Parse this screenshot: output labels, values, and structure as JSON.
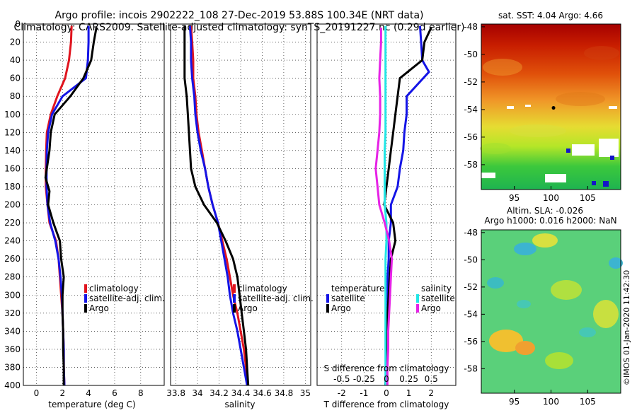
{
  "header": {
    "line1": "Argo profile: incois 2902222_108 27-Dec-2019 53.88S 100.34E (NRT data)",
    "line2": "Climatology: CARS2009. Satellite-adjusted climatology: synTS_20191227.nc (0.29d earlier)"
  },
  "colors": {
    "climatology": "#e0141e",
    "satellite": "#1414e6",
    "argo": "#000000",
    "salinity_satellite": "#22e6e6",
    "salinity_argo": "#e622e6"
  },
  "chart_data": [
    {
      "type": "line",
      "title": "",
      "xlabel": "temperature (deg C)",
      "ylabel": "",
      "xlim": [
        -1,
        9.8
      ],
      "ylim": [
        400,
        0
      ],
      "xticks": [
        "0",
        "2",
        "4",
        "6",
        "8"
      ],
      "yticks": [
        "0",
        "20",
        "40",
        "60",
        "80",
        "100",
        "120",
        "140",
        "160",
        "180",
        "200",
        "220",
        "240",
        "260",
        "280",
        "300",
        "320",
        "340",
        "360",
        "380",
        "400"
      ],
      "legend": [
        "climatology",
        "satellite-adj. clim.",
        "Argo"
      ],
      "series": [
        {
          "name": "climatology",
          "color": "#e0141e",
          "x": [
            2.7,
            2.65,
            2.5,
            2.2,
            1.6,
            1.1,
            0.8,
            0.75,
            0.72,
            0.72,
            0.85,
            1.0,
            1.5,
            1.7,
            1.8,
            1.9,
            2.0,
            2.05,
            2.1,
            2.1,
            2.15
          ],
          "y": [
            2,
            20,
            40,
            60,
            80,
            100,
            120,
            140,
            160,
            180,
            200,
            220,
            240,
            260,
            280,
            300,
            320,
            340,
            360,
            380,
            400
          ]
        },
        {
          "name": "satellite-adj. clim.",
          "color": "#1414e6",
          "x": [
            4.0,
            4.0,
            3.95,
            3.8,
            2.0,
            1.2,
            0.9,
            0.8,
            0.78,
            0.78,
            0.85,
            1.05,
            1.45,
            1.7,
            1.85,
            1.95,
            2.0,
            2.05,
            2.1,
            2.1,
            2.15
          ],
          "y": [
            2,
            20,
            40,
            60,
            80,
            100,
            120,
            140,
            160,
            180,
            200,
            220,
            240,
            260,
            280,
            300,
            320,
            340,
            360,
            380,
            400
          ]
        },
        {
          "name": "Argo",
          "color": "#000000",
          "x": [
            4.6,
            4.4,
            4.2,
            3.6,
            2.6,
            1.4,
            1.1,
            1.0,
            0.7,
            1.0,
            0.9,
            1.3,
            1.8,
            1.9,
            2.1,
            2.0,
            2.0,
            2.05,
            2.05,
            2.1,
            2.1
          ],
          "y": [
            4,
            20,
            40,
            60,
            80,
            100,
            120,
            140,
            170,
            185,
            200,
            220,
            240,
            260,
            280,
            300,
            320,
            340,
            360,
            380,
            400
          ]
        }
      ]
    },
    {
      "type": "line",
      "title": "",
      "xlabel": "salinity",
      "ylabel": "",
      "xlim": [
        33.75,
        35.05
      ],
      "ylim": [
        400,
        0
      ],
      "xticks": [
        "33.8",
        "34",
        "34.2",
        "34.4",
        "34.6",
        "34.8",
        "35"
      ],
      "legend": [
        "climatology",
        "satellite-adj. clim.",
        "Argo"
      ],
      "series": [
        {
          "name": "climatology",
          "color": "#e0141e",
          "x": [
            33.94,
            33.95,
            33.96,
            33.96,
            33.98,
            33.99,
            34.01,
            34.04,
            34.07,
            34.1,
            34.14,
            34.19,
            34.23,
            34.27,
            34.3,
            34.33,
            34.37,
            34.4,
            34.43,
            34.45,
            34.47
          ],
          "y": [
            2,
            20,
            40,
            60,
            80,
            100,
            120,
            140,
            160,
            180,
            200,
            220,
            240,
            260,
            280,
            300,
            320,
            340,
            360,
            380,
            400
          ]
        },
        {
          "name": "satellite-adj. clim.",
          "color": "#1414e6",
          "x": [
            33.93,
            33.94,
            33.94,
            33.95,
            33.97,
            33.98,
            34.0,
            34.03,
            34.07,
            34.1,
            34.14,
            34.19,
            34.22,
            34.25,
            34.28,
            34.3,
            34.33,
            34.37,
            34.4,
            34.43,
            34.46
          ],
          "y": [
            2,
            20,
            40,
            60,
            80,
            100,
            120,
            140,
            160,
            180,
            200,
            220,
            240,
            260,
            280,
            300,
            320,
            340,
            360,
            380,
            400
          ]
        },
        {
          "name": "Argo",
          "color": "#000000",
          "x": [
            33.88,
            33.88,
            33.88,
            33.88,
            33.9,
            33.91,
            33.92,
            33.93,
            33.94,
            33.98,
            34.06,
            34.18,
            34.26,
            34.33,
            34.37,
            34.39,
            34.41,
            34.43,
            34.45,
            34.46,
            34.47
          ],
          "y": [
            2,
            20,
            40,
            60,
            80,
            100,
            120,
            140,
            160,
            180,
            200,
            220,
            240,
            260,
            280,
            300,
            320,
            340,
            360,
            380,
            400
          ]
        }
      ]
    },
    {
      "type": "line",
      "title": "",
      "xlabel": "T difference from climatology",
      "ylabel": "",
      "xlim": [
        -3.1,
        3.1
      ],
      "ylim": [
        400,
        0
      ],
      "xticks": [
        "-2",
        "-1",
        "0",
        "1",
        "2"
      ],
      "secondary_axis": {
        "label": "S difference from climatology",
        "xlim": [
          -0.775,
          0.775
        ],
        "xticks": [
          "-0.5",
          "-0.25",
          "0",
          "0.25",
          "0.5"
        ]
      },
      "legend": [
        "temperature",
        "satellite",
        "Argo",
        "salinity",
        "satellite",
        "Argo"
      ],
      "series": [
        {
          "name": "temperature satellite",
          "color": "#1414e6",
          "x": [
            1.5,
            1.55,
            1.6,
            1.9,
            0.9,
            0.9,
            0.8,
            0.75,
            0.6,
            0.5,
            0.2,
            0.2,
            0.1,
            0.1,
            0.05,
            0.05,
            0.05,
            0.02,
            0.02,
            0.02,
            0.02
          ],
          "y": [
            2,
            20,
            40,
            53,
            80,
            100,
            120,
            140,
            160,
            180,
            200,
            220,
            240,
            260,
            280,
            300,
            320,
            340,
            360,
            380,
            400
          ]
        },
        {
          "name": "temperature Argo",
          "color": "#000000",
          "x": [
            2.0,
            1.7,
            1.6,
            0.6,
            0.5,
            0.4,
            0.3,
            0.2,
            0.1,
            0.0,
            -0.1,
            0.3,
            0.4,
            0.2,
            0.15,
            0.1,
            0.05,
            0.05,
            0.0,
            0.0,
            -0.05
          ],
          "y": [
            4,
            20,
            40,
            60,
            80,
            100,
            120,
            140,
            160,
            180,
            200,
            220,
            240,
            260,
            280,
            300,
            320,
            340,
            360,
            380,
            400
          ]
        },
        {
          "name": "salinity satellite",
          "color": "#22e6e6",
          "x": [
            -0.01,
            -0.01,
            -0.01,
            -0.01,
            -0.01,
            -0.01,
            -0.01,
            -0.02,
            -0.02,
            -0.02,
            -0.02,
            0.0,
            0.0,
            -0.01,
            -0.01,
            -0.01,
            -0.01,
            -0.01,
            -0.01,
            -0.01,
            -0.01
          ],
          "y": [
            2,
            20,
            40,
            60,
            80,
            100,
            120,
            140,
            160,
            180,
            200,
            220,
            240,
            260,
            280,
            300,
            320,
            340,
            360,
            380,
            400
          ]
        },
        {
          "name": "salinity Argo",
          "color": "#e622e6",
          "x": [
            -0.06,
            -0.06,
            -0.07,
            -0.08,
            -0.07,
            -0.07,
            -0.08,
            -0.1,
            -0.12,
            -0.1,
            -0.08,
            -0.02,
            0.03,
            0.06,
            0.05,
            0.04,
            0.03,
            0.02,
            0.02,
            0.01,
            0.01
          ],
          "y": [
            4,
            20,
            40,
            60,
            80,
            100,
            120,
            140,
            160,
            180,
            200,
            220,
            240,
            260,
            280,
            300,
            320,
            340,
            360,
            380,
            400
          ]
        }
      ]
    },
    {
      "type": "heatmap",
      "title": "sat. SST: 4.04 Argo: 4.66",
      "xticks": [
        "95",
        "100",
        "105"
      ],
      "yticks": [
        "-48",
        "-50",
        "-52",
        "-54",
        "-56",
        "-58"
      ],
      "xlim": [
        90.5,
        109.5
      ],
      "ylim": [
        -59.8,
        -47.8
      ],
      "argo_location": {
        "lon": 100.34,
        "lat": -53.88
      }
    },
    {
      "type": "heatmap",
      "title": "Altim. SLA: -0.026",
      "subtitle": "Argo h1000: 0.016 h2000: NaN",
      "xticks": [
        "95",
        "100",
        "105"
      ],
      "yticks": [
        "-48",
        "-50",
        "-52",
        "-54",
        "-56",
        "-58"
      ],
      "xlim": [
        90.5,
        109.5
      ],
      "ylim": [
        -59.8,
        -47.8
      ]
    }
  ],
  "watermark": "©IMOS 01-Jan-2020 11:42:30"
}
